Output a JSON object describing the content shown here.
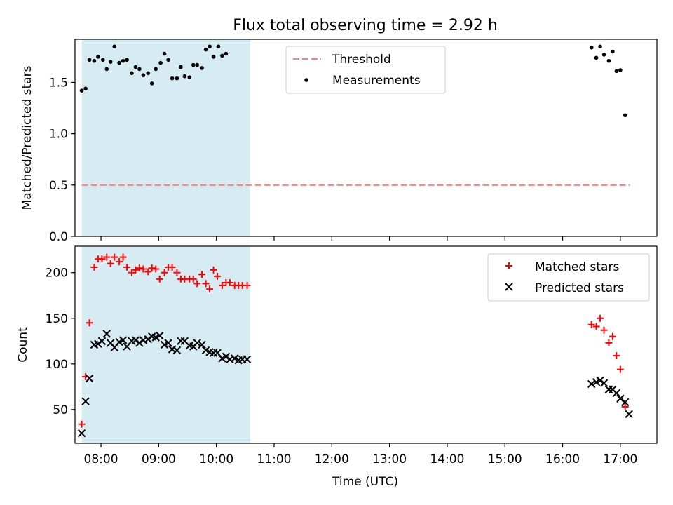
{
  "title": "Flux total observing time = 2.92 h",
  "xlabel": "Time (UTC)",
  "x_ticks": [
    "08:00",
    "09:00",
    "10:00",
    "11:00",
    "12:00",
    "13:00",
    "14:00",
    "15:00",
    "16:00",
    "17:00"
  ],
  "colors": {
    "shade": "#ADD8E6",
    "threshold": "#FF7F7F",
    "measurements": "#000000",
    "matched": "#FF0000",
    "predicted": "#000000"
  },
  "chart_data": [
    {
      "type": "scatter",
      "ylabel": "Matched/Predicted stars",
      "xlim": [
        "07:33",
        "17:38"
      ],
      "ylim": [
        0,
        1.92
      ],
      "y_ticks": [
        "0.0",
        "0.5",
        "1.0",
        "1.5"
      ],
      "shaded_interval": [
        "07:40",
        "10:35"
      ],
      "legend": {
        "placement": "top-center",
        "entries": [
          "Threshold",
          "Measurements"
        ]
      },
      "threshold": {
        "name": "Threshold",
        "y": 0.5,
        "x": [
          "07:40",
          "17:10"
        ],
        "style": "dashed"
      },
      "series": [
        {
          "name": "Measurements",
          "marker": "dot",
          "x": [
            "07:40",
            "07:44",
            "07:48",
            "07:53",
            "07:57",
            "08:02",
            "08:06",
            "08:10",
            "08:14",
            "08:19",
            "08:23",
            "08:27",
            "08:32",
            "08:36",
            "08:40",
            "08:44",
            "08:49",
            "08:53",
            "08:57",
            "09:02",
            "09:06",
            "09:10",
            "09:14",
            "09:19",
            "09:23",
            "09:27",
            "09:32",
            "09:36",
            "09:40",
            "09:45",
            "09:49",
            "09:53",
            "09:57",
            "10:02",
            "10:06",
            "10:10",
            "10:14",
            "10:19",
            "10:23",
            "10:27",
            "10:32",
            "16:30",
            "16:35",
            "16:39",
            "16:43",
            "16:48",
            "16:52",
            "16:56",
            "17:00",
            "17:05",
            "17:09"
          ],
          "y": [
            1.42,
            1.44,
            1.72,
            1.71,
            1.75,
            1.72,
            1.63,
            1.7,
            1.85,
            1.69,
            1.71,
            1.72,
            1.59,
            1.65,
            1.63,
            1.57,
            1.59,
            1.49,
            1.63,
            1.69,
            1.78,
            1.72,
            1.54,
            1.54,
            1.65,
            1.56,
            1.55,
            1.67,
            1.67,
            1.64,
            1.82,
            1.85,
            1.75,
            1.85,
            1.76,
            1.78,
            null,
            null,
            null,
            null,
            null,
            1.84,
            1.74,
            1.85,
            1.77,
            1.71,
            1.8,
            1.61,
            1.62,
            1.18,
            null
          ]
        }
      ]
    },
    {
      "type": "scatter",
      "ylabel": "Count",
      "xlabel": "Time (UTC)",
      "xlim": [
        "07:33",
        "17:38"
      ],
      "ylim": [
        13,
        229
      ],
      "y_ticks": [
        "50",
        "100",
        "150",
        "200"
      ],
      "shaded_interval": [
        "07:40",
        "10:35"
      ],
      "legend": {
        "placement": "top-right",
        "entries": [
          "Matched stars",
          "Predicted stars"
        ]
      },
      "series": [
        {
          "name": "Matched stars",
          "marker": "plus",
          "x": [
            "07:40",
            "07:44",
            "07:48",
            "07:53",
            "07:57",
            "08:01",
            "08:06",
            "08:10",
            "08:14",
            "08:19",
            "08:23",
            "08:27",
            "08:32",
            "08:36",
            "08:40",
            "08:44",
            "08:49",
            "08:53",
            "08:57",
            "09:01",
            "09:06",
            "09:10",
            "09:14",
            "09:19",
            "09:23",
            "09:27",
            "09:32",
            "09:36",
            "09:40",
            "09:45",
            "09:49",
            "09:53",
            "09:57",
            "10:01",
            "10:06",
            "10:10",
            "10:14",
            "10:19",
            "10:23",
            "10:27",
            "10:32",
            "16:30",
            "16:35",
            "16:39",
            "16:43",
            "16:48",
            "16:52",
            "16:56",
            "17:00",
            "17:05"
          ],
          "y": [
            34,
            86,
            145,
            206,
            215,
            215,
            217,
            210,
            217,
            212,
            217,
            206,
            200,
            203,
            205,
            204,
            201,
            205,
            204,
            193,
            200,
            206,
            206,
            200,
            193,
            193,
            193,
            193,
            188,
            198,
            188,
            182,
            203,
            196,
            186,
            189,
            189,
            186,
            186,
            186,
            186,
            143,
            141,
            150,
            137,
            123,
            130,
            109,
            94,
            53
          ]
        },
        {
          "name": "Predicted stars",
          "marker": "x",
          "x": [
            "07:40",
            "07:44",
            "07:48",
            "07:53",
            "07:57",
            "08:01",
            "08:06",
            "08:10",
            "08:14",
            "08:19",
            "08:23",
            "08:27",
            "08:32",
            "08:36",
            "08:40",
            "08:44",
            "08:49",
            "08:53",
            "08:57",
            "09:01",
            "09:06",
            "09:10",
            "09:14",
            "09:19",
            "09:23",
            "09:27",
            "09:32",
            "09:36",
            "09:40",
            "09:45",
            "09:49",
            "09:53",
            "09:57",
            "10:01",
            "10:06",
            "10:10",
            "10:14",
            "10:19",
            "10:23",
            "10:27",
            "10:32",
            "16:30",
            "16:35",
            "16:39",
            "16:43",
            "16:48",
            "16:52",
            "16:56",
            "17:00",
            "17:05",
            "17:09"
          ],
          "y": [
            24,
            59,
            84,
            121,
            122,
            125,
            133,
            123,
            118,
            124,
            126,
            119,
            125,
            126,
            123,
            126,
            127,
            130,
            129,
            131,
            121,
            123,
            116,
            115,
            125,
            125,
            120,
            119,
            123,
            121,
            115,
            113,
            112,
            112,
            106,
            108,
            105,
            106,
            104,
            105,
            105,
            78,
            80,
            82,
            79,
            72,
            72,
            68,
            62,
            58,
            45
          ]
        }
      ]
    }
  ]
}
